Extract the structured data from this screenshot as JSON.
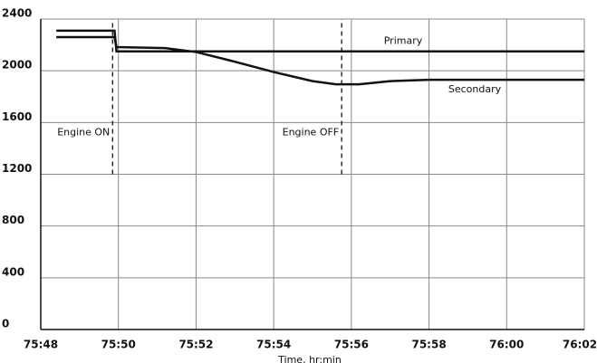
{
  "chart_data": {
    "type": "line",
    "xlabel": "Time, hr:min",
    "xlim": [
      4548,
      4562
    ],
    "xticks": [
      {
        "value": 4548,
        "label": "75:48"
      },
      {
        "value": 4550,
        "label": "75:50"
      },
      {
        "value": 4552,
        "label": "75:52"
      },
      {
        "value": 4554,
        "label": "75:54"
      },
      {
        "value": 4556,
        "label": "75:56"
      },
      {
        "value": 4558,
        "label": "75:58"
      },
      {
        "value": 4560,
        "label": "76:00"
      },
      {
        "value": 4562,
        "label": "76:02"
      }
    ],
    "ylim": [
      0,
      2400
    ],
    "yticks": [
      0,
      400,
      800,
      1200,
      1600,
      2000,
      2400
    ],
    "grid": true,
    "series": [
      {
        "name": "Primary",
        "color": "#111111",
        "x": [
          4548.4,
          4549.9,
          4549.95,
          4562
        ],
        "values": [
          2310,
          2310,
          2150,
          2150
        ]
      },
      {
        "name": "Secondary",
        "color": "#111111",
        "x": [
          4548.4,
          4549.9,
          4549.95,
          4550.5,
          4551.2,
          4552,
          4553,
          4554,
          4555,
          4555.6,
          4556.2,
          4557,
          4558,
          4560,
          4562
        ],
        "values": [
          2260,
          2260,
          2183,
          2180,
          2175,
          2145,
          2070,
          1990,
          1920,
          1895,
          1895,
          1920,
          1930,
          1930,
          1930
        ]
      }
    ],
    "annotations": [
      {
        "text": "Engine ON",
        "x": 4549.85,
        "y": [
          1200,
          2400
        ]
      },
      {
        "text": "Engine OFF",
        "x": 4555.75,
        "y": [
          1200,
          2400
        ]
      }
    ]
  }
}
